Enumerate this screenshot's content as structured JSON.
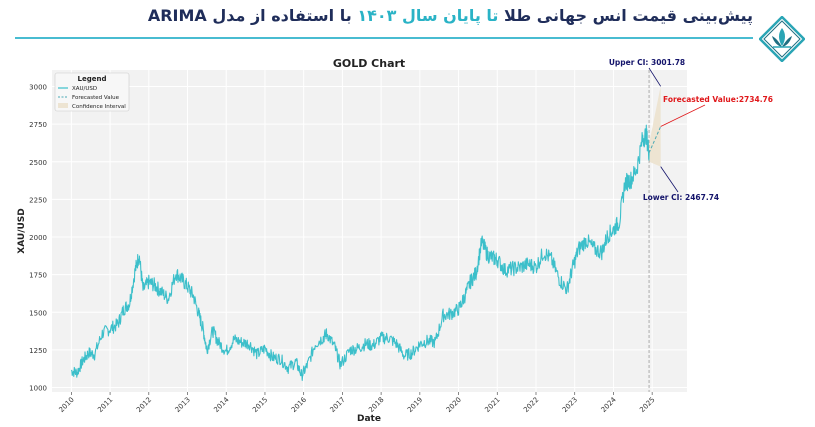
{
  "header": {
    "title_part1": "پیش‌بینی قیمت انس جهانی طلا",
    "title_part2": "تا پایان سال ۱۴۰۳",
    "title_part3": "با استفاده از مدل ARIMA"
  },
  "logo": {
    "icon": "lotus-diamond-logo-icon"
  },
  "colors": {
    "series": "#3cbfca",
    "forecast": "#4aa8b4",
    "ci_fill": "#ede4d2",
    "upper_annot": "#14146b",
    "forecast_annot": "#e0181b",
    "lower_annot": "#14146b",
    "plot_bg": "#f2f2f2",
    "grid": "#ffffff",
    "header_dark": "#1f2d5a",
    "header_accent": "#2ab3c6"
  },
  "chart_data": {
    "type": "line",
    "title": "GOLD Chart",
    "xlabel": "Date",
    "ylabel": "XAU/USD",
    "xlim": [
      2009.5,
      2025.9
    ],
    "ylim": [
      970,
      3110
    ],
    "x_ticks": [
      2010,
      2011,
      2012,
      2013,
      2014,
      2015,
      2016,
      2017,
      2018,
      2019,
      2020,
      2021,
      2022,
      2023,
      2024,
      2025
    ],
    "y_ticks": [
      1000,
      1250,
      1500,
      1750,
      2000,
      2250,
      2500,
      2750,
      3000
    ],
    "grid": true,
    "legend": {
      "title": "Legend",
      "position": "top-left",
      "entries": [
        "XAU/USD",
        "Forecasted Value",
        "Confidence Interval"
      ]
    },
    "series": [
      {
        "name": "XAU/USD",
        "x": [
          2010.0,
          2010.15,
          2010.3,
          2010.45,
          2010.6,
          2010.8,
          2011.0,
          2011.2,
          2011.35,
          2011.5,
          2011.65,
          2011.75,
          2011.85,
          2012.0,
          2012.15,
          2012.3,
          2012.5,
          2012.7,
          2012.85,
          2013.0,
          2013.15,
          2013.3,
          2013.4,
          2013.5,
          2013.65,
          2013.8,
          2014.0,
          2014.2,
          2014.4,
          2014.6,
          2014.8,
          2015.0,
          2015.2,
          2015.4,
          2015.6,
          2015.8,
          2015.95,
          2016.1,
          2016.3,
          2016.5,
          2016.6,
          2016.8,
          2016.95,
          2017.2,
          2017.4,
          2017.6,
          2017.8,
          2018.0,
          2018.2,
          2018.4,
          2018.6,
          2018.8,
          2019.0,
          2019.2,
          2019.4,
          2019.6,
          2019.8,
          2020.0,
          2020.15,
          2020.3,
          2020.45,
          2020.6,
          2020.75,
          2020.9,
          2021.0,
          2021.2,
          2021.4,
          2021.6,
          2021.8,
          2022.0,
          2022.2,
          2022.4,
          2022.6,
          2022.8,
          2022.95,
          2023.1,
          2023.3,
          2023.5,
          2023.7,
          2023.85,
          2024.0,
          2024.15,
          2024.3,
          2024.45,
          2024.6,
          2024.75,
          2024.85,
          2024.92
        ],
        "values": [
          1110,
          1100,
          1180,
          1230,
          1220,
          1360,
          1390,
          1420,
          1520,
          1560,
          1780,
          1880,
          1650,
          1700,
          1680,
          1640,
          1590,
          1760,
          1720,
          1670,
          1610,
          1480,
          1390,
          1250,
          1380,
          1300,
          1240,
          1320,
          1300,
          1290,
          1220,
          1260,
          1200,
          1190,
          1130,
          1170,
          1080,
          1150,
          1290,
          1330,
          1360,
          1270,
          1150,
          1250,
          1260,
          1290,
          1280,
          1330,
          1330,
          1290,
          1210,
          1230,
          1290,
          1310,
          1300,
          1480,
          1490,
          1520,
          1600,
          1700,
          1760,
          1970,
          1880,
          1860,
          1850,
          1780,
          1790,
          1800,
          1820,
          1800,
          1900,
          1850,
          1720,
          1650,
          1800,
          1920,
          1980,
          1920,
          1900,
          2010,
          2050,
          2100,
          2360,
          2380,
          2450,
          2650,
          2680,
          2560
        ]
      },
      {
        "name": "Forecasted Value",
        "x": [
          2024.92,
          2025.22
        ],
        "values": [
          2560,
          2734.76
        ]
      }
    ],
    "confidence_interval": {
      "x": [
        2024.92,
        2025.22
      ],
      "upper": [
        2620,
        3001.78
      ],
      "lower": [
        2500,
        2467.74
      ]
    },
    "forecast_start_x": 2024.92,
    "annotations": [
      {
        "text": "Upper CI: 3001.78",
        "x": 2025.22,
        "y": 3001.78
      },
      {
        "text": "Forecasted Value:2734.76",
        "x": 2025.22,
        "y": 2734.76
      },
      {
        "text": "Lower CI: 2467.74",
        "x": 2025.22,
        "y": 2467.74
      }
    ]
  }
}
